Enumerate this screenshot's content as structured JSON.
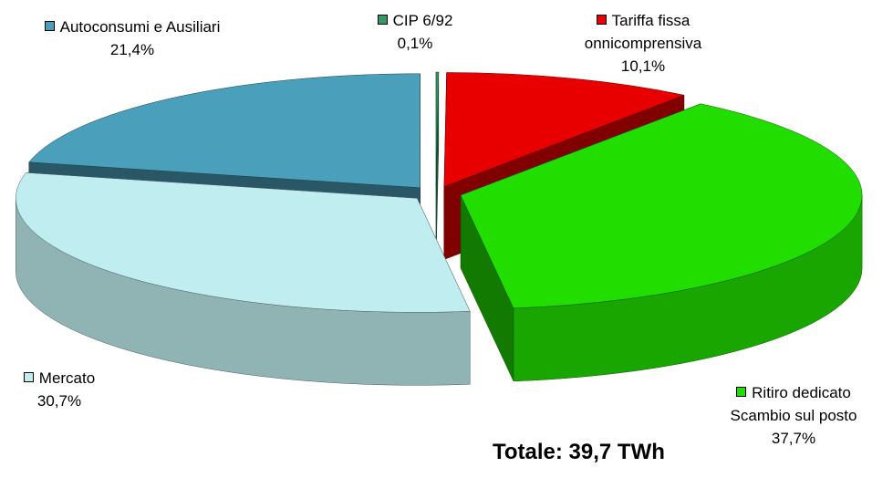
{
  "chart_data": {
    "type": "pie3d",
    "categories": [
      "CIP 6/92",
      "Tariffa fissa\nonnicomprensiva",
      "Ritiro dedicato\nScambio sul posto",
      "Mercato",
      "Autoconsumi e Ausiliari"
    ],
    "values": [
      0.1,
      10.1,
      37.7,
      30.7,
      21.4
    ],
    "value_labels": [
      "0,1%",
      "10,1%",
      "37,7%",
      "30,7%",
      "21,4%"
    ],
    "colors": [
      "#339966",
      "#e80000",
      "#22dd00",
      "#c0eef0",
      "#4a9fba"
    ],
    "annotation": "Totale: 39,7 TWh"
  }
}
